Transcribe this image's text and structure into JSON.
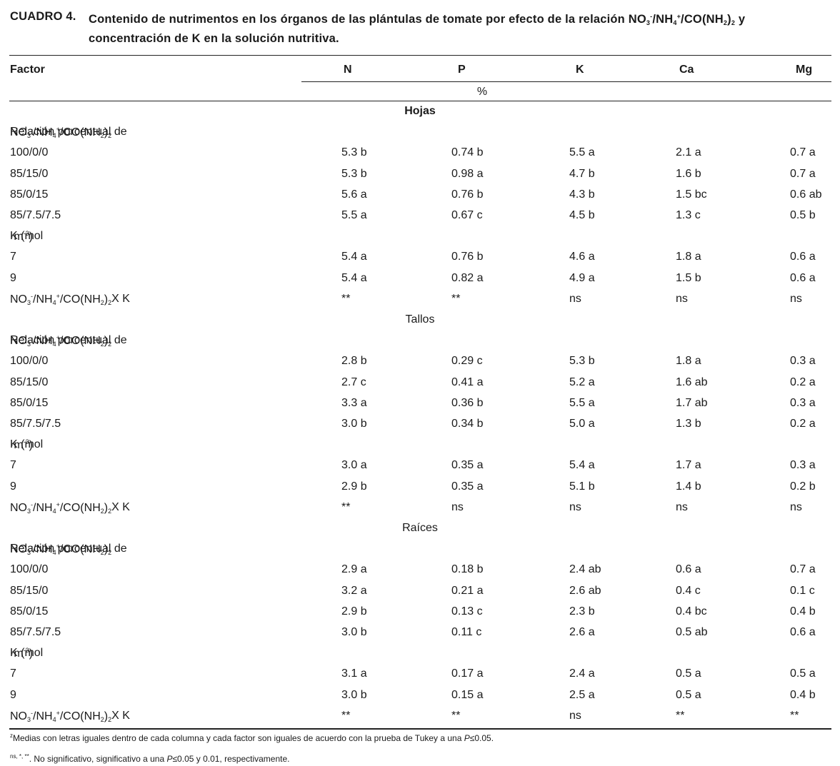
{
  "caption": {
    "label": "CUADRO 4.",
    "text_before": "Contenido de nutrimentos en los órganos de las plántulas de tomate por efecto de la relación NO",
    "text_after": "concentración de K en la solución nutritiva."
  },
  "header": {
    "factor": "Factor",
    "columns": [
      "N",
      "P",
      "K",
      "Ca",
      "Mg"
    ],
    "unit": "%"
  },
  "labels": {
    "ratio_prefix": "Relación porcentual de",
    "k_prefix": "K (mol",
    "k_exp": "-3",
    "interaction_suffix": " X K"
  },
  "sections": [
    {
      "name": "Hojas",
      "ratio_rows": [
        {
          "factor": "100/0/0",
          "values": [
            "5.3 b",
            "0.74 b",
            "5.5 a",
            "2.1 a",
            "0.7 a"
          ]
        },
        {
          "factor": "85/15/0",
          "values": [
            "5.3 b",
            "0.98 a",
            "4.7 b",
            "1.6 b",
            "0.7 a"
          ]
        },
        {
          "factor": "85/0/15",
          "values": [
            "5.6 a",
            "0.76 b",
            "4.3 b",
            "1.5 bc",
            "0.6 ab"
          ]
        },
        {
          "factor": "85/7.5/7.5",
          "values": [
            "5.5 a",
            "0.67 c",
            "4.5 b",
            "1.3 c",
            "0.5 b"
          ]
        }
      ],
      "k_rows": [
        {
          "factor": "7",
          "values": [
            "5.4 a",
            "0.76 b",
            "4.6 a",
            "1.8 a",
            "0.6 a"
          ]
        },
        {
          "factor": "9",
          "values": [
            "5.4 a",
            "0.82 a",
            "4.9 a",
            "1.5 b",
            "0.6 a"
          ]
        }
      ],
      "interaction": [
        "**",
        "**",
        "ns",
        "ns",
        "ns"
      ]
    },
    {
      "name": "Tallos",
      "ratio_rows": [
        {
          "factor": "100/0/0",
          "values": [
            "2.8 b",
            "0.29 c",
            "5.3 b",
            "1.8 a",
            "0.3 a"
          ]
        },
        {
          "factor": "85/15/0",
          "values": [
            "2.7 c",
            "0.41 a",
            "5.2 a",
            "1.6 ab",
            "0.2 a"
          ]
        },
        {
          "factor": "85/0/15",
          "values": [
            "3.3 a",
            "0.36 b",
            "5.5 a",
            "1.7 ab",
            "0.3 a"
          ]
        },
        {
          "factor": "85/7.5/7.5",
          "values": [
            "3.0 b",
            "0.34 b",
            "5.0 a",
            "1.3 b",
            "0.2 a"
          ]
        }
      ],
      "k_rows": [
        {
          "factor": "7",
          "values": [
            "3.0 a",
            "0.35 a",
            "5.4 a",
            "1.7 a",
            "0.3 a"
          ]
        },
        {
          "factor": "9",
          "values": [
            "2.9 b",
            "0.35 a",
            "5.1 b",
            "1.4 b",
            "0.2 b"
          ]
        }
      ],
      "interaction": [
        "**",
        "ns",
        "ns",
        "ns",
        "ns"
      ]
    },
    {
      "name": "Raíces",
      "ratio_rows": [
        {
          "factor": "100/0/0",
          "values": [
            "2.9 a",
            "0.18 b",
            "2.4 ab",
            "0.6 a",
            "0.7 a"
          ]
        },
        {
          "factor": "85/15/0",
          "values": [
            "3.2 a",
            "0.21 a",
            "2.6 ab",
            "0.4 c",
            "0.1 c"
          ]
        },
        {
          "factor": "85/0/15",
          "values": [
            "2.9 b",
            "0.13 c",
            "2.3 b",
            "0.4 bc",
            "0.4 b"
          ]
        },
        {
          "factor": "85/7.5/7.5",
          "values": [
            "3.0 b",
            "0.11 c",
            "2.6 a",
            "0.5 ab",
            "0.6 a"
          ]
        }
      ],
      "k_rows": [
        {
          "factor": "7",
          "values": [
            "3.1 a",
            "0.17 a",
            "2.4 a",
            "0.5 a",
            "0.5 a"
          ]
        },
        {
          "factor": "9",
          "values": [
            "3.0 b",
            "0.15 a",
            "2.5 a",
            "0.5 a",
            "0.4 b"
          ]
        }
      ],
      "interaction": [
        "**",
        "**",
        "ns",
        "**",
        "**"
      ]
    }
  ],
  "footnotes": {
    "z_marker": "z",
    "z_text_a": "Medias con letras iguales dentro de cada columna y cada factor son iguales de acuerdo con la prueba de Tukey a una ",
    "z_text_b": "≤0.05.",
    "sig_markers": "ns, *, **",
    "sig_text_a": ". No significativo, significativo a una ",
    "sig_text_b": "≤0.05 y 0.01, respectivamente.",
    "p_symbol": "P"
  }
}
